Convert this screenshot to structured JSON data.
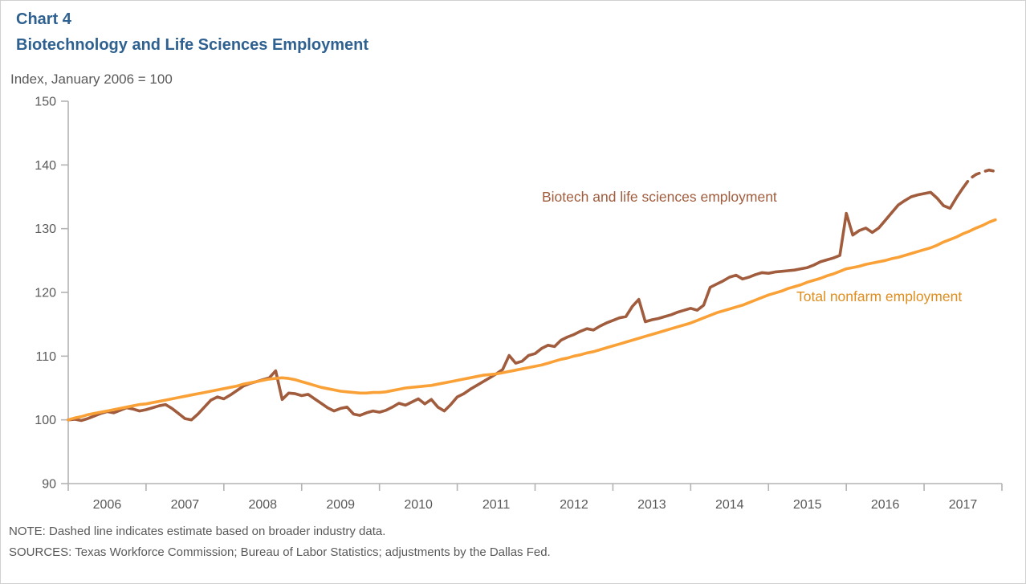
{
  "header": {
    "chart_label": "Chart 4",
    "title": "Biotechnology and Life Sciences Employment",
    "subtitle": "Index, January 2006 = 100"
  },
  "footer": {
    "note": "NOTE: Dashed line indicates estimate based on broader industry data.",
    "sources": "SOURCES: Texas Workforce Commission; Bureau of Labor Statistics; adjustments by the Dallas Fed."
  },
  "colors": {
    "title_blue": "#2F6190",
    "text_gray": "#595959",
    "axis_gray": "#B3B3B3",
    "biotech_line": "#A05C3D",
    "nonfarm_line": "#F9A136",
    "nonfarm_label": "#DE8E1F"
  },
  "chart_data": {
    "type": "line",
    "title": "Biotechnology and Life Sciences Employment",
    "subtitle_axis_note": "Index, January 2006 = 100",
    "x_unit": "month",
    "x_start": "2006-01",
    "x_end": "2017-12",
    "x_tick_labels": [
      "2006",
      "2007",
      "2008",
      "2009",
      "2010",
      "2011",
      "2012",
      "2013",
      "2014",
      "2015",
      "2016",
      "2017"
    ],
    "ylim": [
      90,
      150
    ],
    "y_ticks": [
      90,
      100,
      110,
      120,
      130,
      140,
      150
    ],
    "grid": false,
    "legend": "inline-labels",
    "series": [
      {
        "name": "Biotech and life sciences employment",
        "color": "#A05C3D",
        "dash_from_index": 138,
        "dash_meaning": "estimate based on broader industry data",
        "values": [
          100.0,
          100.1,
          99.9,
          100.2,
          100.6,
          101.0,
          101.3,
          101.1,
          101.5,
          101.9,
          101.7,
          101.4,
          101.6,
          101.9,
          102.2,
          102.4,
          101.8,
          101.0,
          100.2,
          100.0,
          100.9,
          102.0,
          103.1,
          103.6,
          103.3,
          103.9,
          104.6,
          105.3,
          105.7,
          106.0,
          106.3,
          106.6,
          107.7,
          103.2,
          104.2,
          104.1,
          103.8,
          104.0,
          103.3,
          102.6,
          101.9,
          101.4,
          101.8,
          102.0,
          100.9,
          100.7,
          101.1,
          101.4,
          101.2,
          101.5,
          102.0,
          102.6,
          102.3,
          102.8,
          103.3,
          102.5,
          103.2,
          102.0,
          101.4,
          102.4,
          103.6,
          104.1,
          104.8,
          105.4,
          106.0,
          106.6,
          107.2,
          107.9,
          110.1,
          108.9,
          109.2,
          110.1,
          110.4,
          111.2,
          111.7,
          111.5,
          112.5,
          113.0,
          113.4,
          113.9,
          114.3,
          114.1,
          114.7,
          115.2,
          115.6,
          116.0,
          116.2,
          117.8,
          118.9,
          115.4,
          115.7,
          115.9,
          116.2,
          116.5,
          116.9,
          117.2,
          117.5,
          117.2,
          118.0,
          120.8,
          121.3,
          121.8,
          122.4,
          122.7,
          122.1,
          122.4,
          122.8,
          123.1,
          123.0,
          123.2,
          123.3,
          123.4,
          123.5,
          123.7,
          123.9,
          124.3,
          124.8,
          125.1,
          125.4,
          125.8,
          132.4,
          129.0,
          129.7,
          130.1,
          129.4,
          130.1,
          131.3,
          132.5,
          133.7,
          134.4,
          135.0,
          135.3,
          135.5,
          135.7,
          134.8,
          133.6,
          133.2,
          134.9,
          136.4,
          137.8,
          138.5,
          138.9,
          139.2,
          139.0
        ]
      },
      {
        "name": "Total nonfarm employment",
        "color": "#F9A136",
        "values": [
          100.0,
          100.3,
          100.5,
          100.8,
          101.0,
          101.2,
          101.4,
          101.6,
          101.8,
          102.0,
          102.2,
          102.4,
          102.5,
          102.7,
          102.9,
          103.1,
          103.3,
          103.5,
          103.7,
          103.9,
          104.1,
          104.3,
          104.5,
          104.7,
          104.9,
          105.1,
          105.3,
          105.6,
          105.8,
          106.0,
          106.2,
          106.4,
          106.5,
          106.6,
          106.5,
          106.3,
          106.0,
          105.7,
          105.4,
          105.1,
          104.9,
          104.7,
          104.5,
          104.4,
          104.3,
          104.2,
          104.2,
          104.3,
          104.3,
          104.4,
          104.6,
          104.8,
          105.0,
          105.1,
          105.2,
          105.3,
          105.4,
          105.6,
          105.8,
          106.0,
          106.2,
          106.4,
          106.6,
          106.8,
          107.0,
          107.1,
          107.2,
          107.4,
          107.6,
          107.8,
          108.0,
          108.2,
          108.4,
          108.6,
          108.9,
          109.2,
          109.5,
          109.7,
          110.0,
          110.2,
          110.5,
          110.7,
          111.0,
          111.3,
          111.6,
          111.9,
          112.2,
          112.5,
          112.8,
          113.1,
          113.4,
          113.7,
          114.0,
          114.3,
          114.6,
          114.9,
          115.2,
          115.6,
          116.0,
          116.4,
          116.8,
          117.1,
          117.4,
          117.7,
          118.0,
          118.4,
          118.8,
          119.2,
          119.6,
          119.9,
          120.2,
          120.6,
          120.9,
          121.2,
          121.6,
          121.9,
          122.2,
          122.6,
          122.9,
          123.3,
          123.7,
          123.9,
          124.1,
          124.4,
          124.6,
          124.8,
          125.0,
          125.3,
          125.5,
          125.8,
          126.1,
          126.4,
          126.7,
          127.0,
          127.4,
          127.9,
          128.3,
          128.7,
          129.2,
          129.6,
          130.1,
          130.5,
          131.0,
          131.4
        ]
      }
    ]
  }
}
